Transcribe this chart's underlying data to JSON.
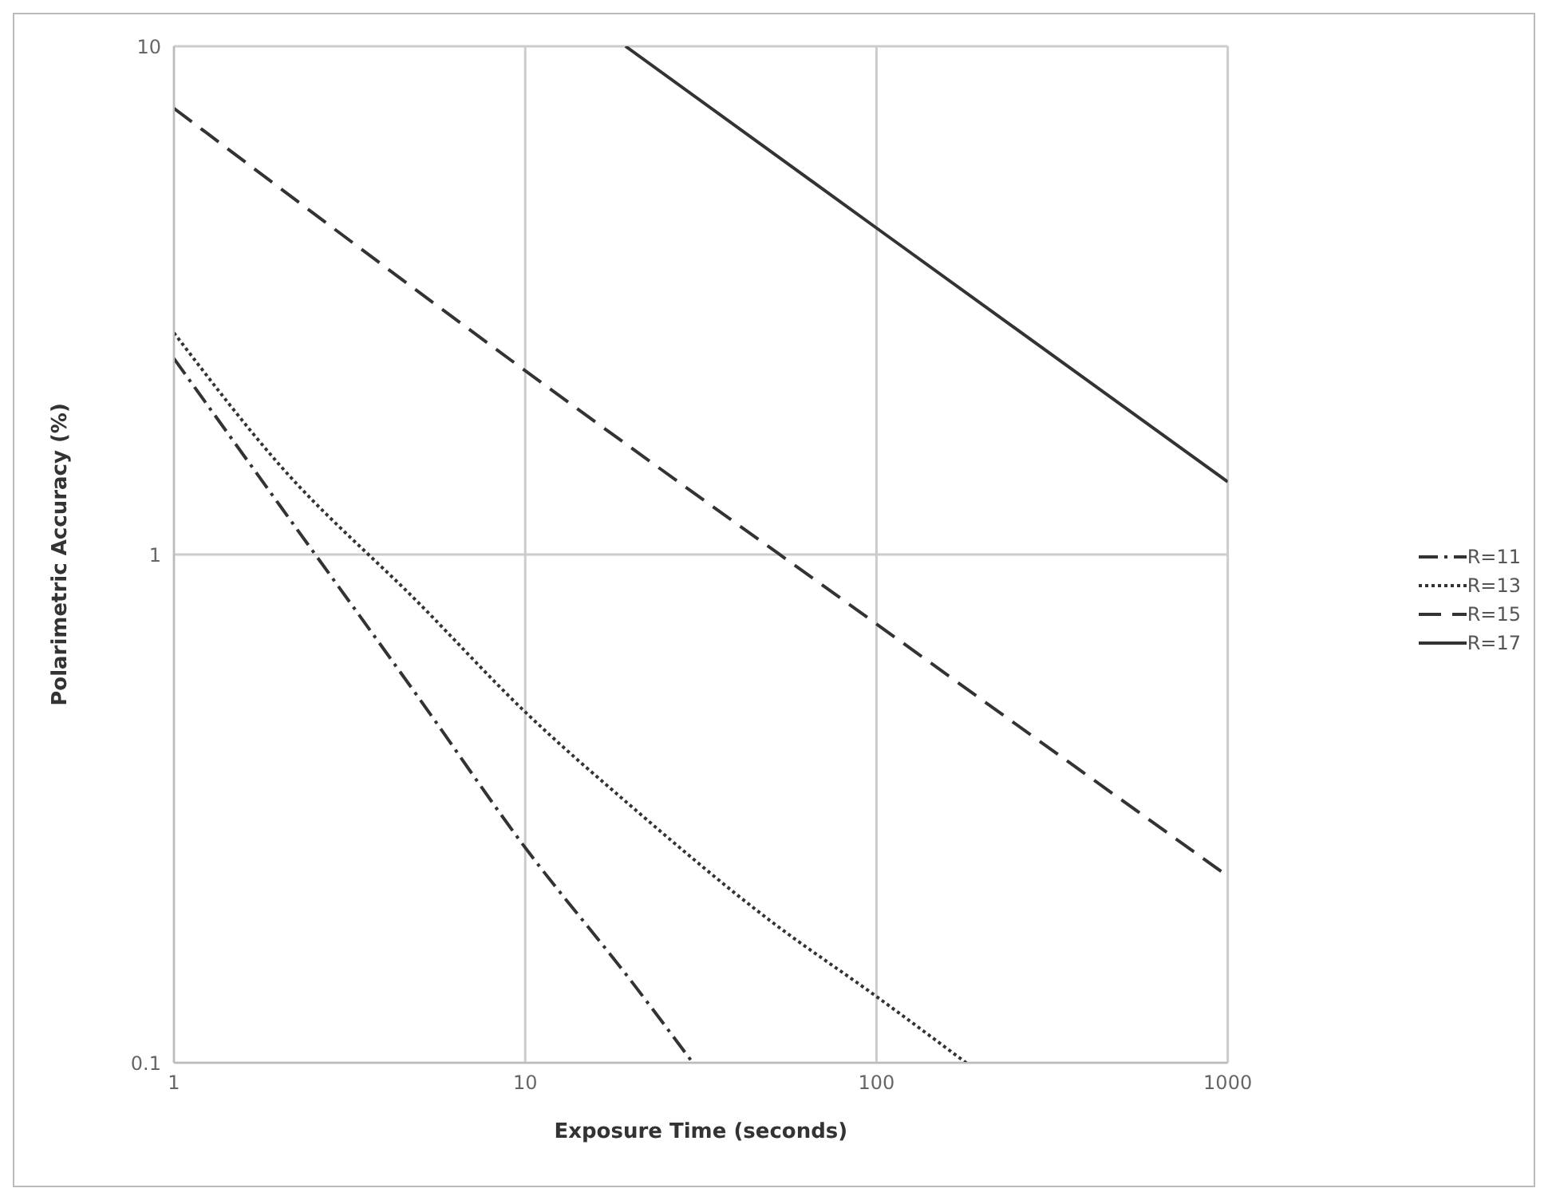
{
  "chart_data": {
    "type": "line",
    "xlabel": "Exposure Time (seconds)",
    "ylabel": "Polarimetric Accuracy (%)",
    "log": "xy",
    "xlim": [
      1,
      1000
    ],
    "xticks": [
      1,
      10,
      100,
      1000
    ],
    "ylim": [
      0.1,
      10
    ],
    "yticks": [
      0.1,
      1,
      10
    ],
    "grid": true,
    "legend": "right",
    "marker": "none",
    "series": [
      {
        "name": "R=11",
        "color": "#333333",
        "line_style": "dashdot",
        "x": [
          1,
          2,
          5,
          10,
          20,
          30
        ],
        "values": [
          2.43,
          1.25,
          0.52,
          0.265,
          0.145,
          0.1
        ]
      },
      {
        "name": "R=13",
        "color": "#333333",
        "line_style": "dotted",
        "x": [
          1,
          2,
          5,
          10,
          20,
          50,
          100,
          180
        ],
        "values": [
          2.73,
          1.5,
          0.8,
          0.49,
          0.32,
          0.19,
          0.135,
          0.1
        ]
      },
      {
        "name": "R=15",
        "color": "#333333",
        "line_style": "dashed",
        "x": [
          1,
          10,
          100,
          1000
        ],
        "values": [
          7.55,
          2.3,
          0.73,
          0.233
        ]
      },
      {
        "name": "R=17",
        "color": "#333333",
        "line_style": "solid",
        "x": [
          19.3,
          100,
          1000
        ],
        "values": [
          10,
          4.39,
          1.39
        ]
      }
    ]
  }
}
